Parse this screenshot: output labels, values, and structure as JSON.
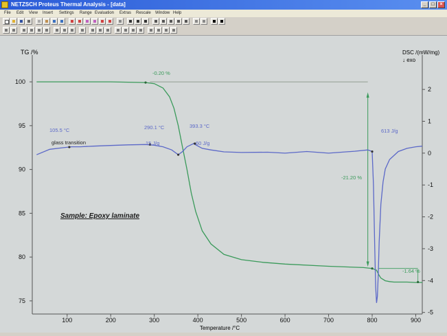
{
  "window": {
    "title": "NETZSCH Proteus Thermal Analysis - [data]",
    "buttons": {
      "minimize": "_",
      "maximize": "□",
      "close": "×"
    }
  },
  "menu": {
    "items": [
      "File",
      "Edit",
      "View",
      "Insert",
      "Settings",
      "Range",
      "Evaluation",
      "Extras",
      "Rescale",
      "Window",
      "Help"
    ]
  },
  "chart_data": {
    "type": "line",
    "xlabel": "Temperature /°C",
    "ylabel_left": "TG /%",
    "ylabel_right": "DSC /(mW/mg)",
    "right_axis_note": "↓ exo",
    "xlim": [
      20,
      915
    ],
    "ylim_left": [
      73.5,
      101.5
    ],
    "ylim_right": [
      -5.05,
      2.65
    ],
    "x_ticks": [
      100,
      200,
      300,
      400,
      500,
      600,
      700,
      800,
      900
    ],
    "y_ticks_left": [
      75,
      80,
      85,
      90,
      95,
      100
    ],
    "y_ticks_right": [
      -5,
      -4,
      -3,
      -2,
      -1,
      0,
      1,
      2
    ],
    "grid": false,
    "series": [
      {
        "color": "#3a9a5a",
        "axis": "left",
        "x": [
          30,
          100,
          200,
          280,
          300,
          320,
          335,
          345,
          355,
          365,
          375,
          385,
          395,
          410,
          430,
          460,
          500,
          550,
          600,
          700,
          780,
          800,
          810,
          815,
          820,
          830,
          840,
          850,
          880,
          900,
          915
        ],
        "y": [
          100.0,
          100.0,
          100.0,
          99.92,
          99.8,
          99.3,
          98.3,
          97.0,
          95.0,
          92.5,
          90.0,
          87.3,
          85.2,
          83.0,
          81.5,
          80.3,
          79.7,
          79.4,
          79.2,
          78.95,
          78.8,
          78.7,
          78.5,
          78.0,
          77.6,
          77.3,
          77.2,
          77.15,
          77.15,
          77.1,
          77.1
        ]
      },
      {
        "color": "#5b68c8",
        "axis": "right",
        "x": [
          30,
          60,
          90,
          110,
          130,
          160,
          200,
          240,
          280,
          300,
          320,
          340,
          355,
          365,
          375,
          390,
          410,
          430,
          460,
          500,
          560,
          600,
          650,
          700,
          760,
          790,
          800,
          803,
          806,
          808,
          810,
          812,
          814,
          816,
          820,
          825,
          830,
          840,
          860,
          880,
          900,
          915
        ],
        "y": [
          -0.05,
          0.12,
          0.17,
          0.2,
          0.2,
          0.22,
          0.24,
          0.26,
          0.27,
          0.25,
          0.2,
          0.1,
          -0.05,
          0.05,
          0.2,
          0.3,
          0.15,
          0.1,
          0.04,
          0.02,
          0.03,
          0.0,
          0.05,
          0.0,
          0.06,
          0.1,
          0.05,
          -1.0,
          -3.0,
          -4.2,
          -4.7,
          -4.5,
          -3.8,
          -2.8,
          -1.6,
          -0.9,
          -0.5,
          -0.2,
          0.05,
          0.15,
          0.2,
          0.22
        ]
      }
    ],
    "annotations": {
      "tg_step1": "-0.20 %",
      "tg_step2": "-21.20 %",
      "tg_step3": "-1.64 %",
      "glass_transition_onset": "105.5 °C",
      "glass_transition_label": "glass transition",
      "peak1_temp": "290.1 °C",
      "peak1_area": "15 J/g",
      "peak2_temp": "393.3 °C",
      "peak2_area": "60 J/g",
      "peak3_area": "613 J/g",
      "sample": "Sample: Epoxy laminate"
    }
  }
}
